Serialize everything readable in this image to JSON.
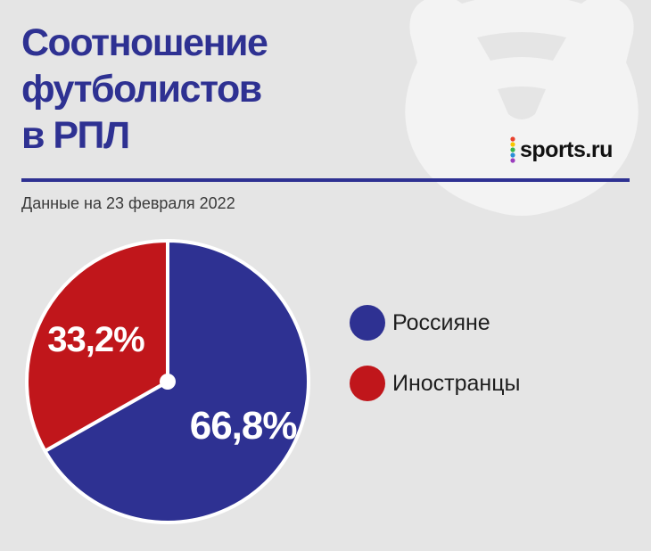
{
  "title_lines": [
    "Соотношение",
    "футболистов",
    "в РПЛ"
  ],
  "subtitle": "Данные на 23 февраля 2022",
  "logo": {
    "text": "sports.ru",
    "dot_colors": [
      "#e8412c",
      "#f6c500",
      "#38b54a",
      "#2a8fd6",
      "#9b3dbd"
    ]
  },
  "colors": {
    "background": "#e5e5e5",
    "accent": "#2e3192",
    "watermark": "#f3f3f3"
  },
  "chart_data": {
    "type": "pie",
    "title": "Соотношение футболистов в РПЛ",
    "slices": [
      {
        "label": "Россияне",
        "value": 66.8,
        "display": "66,8%",
        "color": "#2e3192"
      },
      {
        "label": "Иностранцы",
        "value": 33.2,
        "display": "33,2%",
        "color": "#c0161b"
      }
    ],
    "start_angle_deg": 0,
    "direction": "clockwise",
    "legend_placement": "right",
    "grid": false
  }
}
